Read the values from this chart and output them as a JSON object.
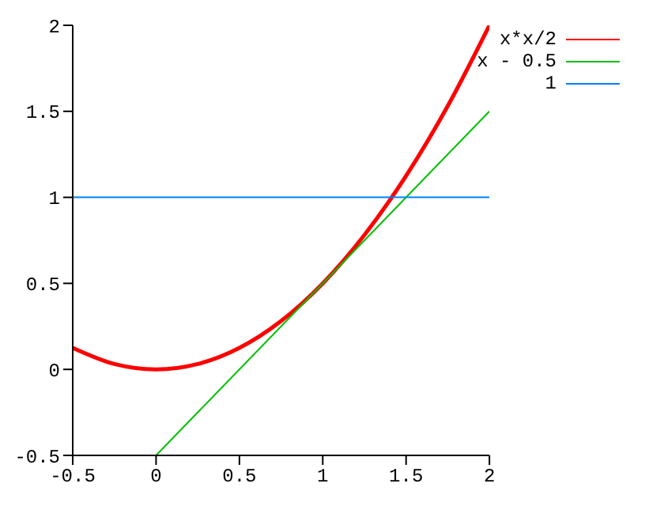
{
  "chart_data": {
    "type": "line",
    "xlim": [
      -0.5,
      2
    ],
    "xticks": [
      -0.5,
      0,
      0.5,
      1,
      1.5,
      2
    ],
    "ylim": [
      -0.5,
      2
    ],
    "yticks": [
      -0.5,
      0,
      0.5,
      1,
      1.5,
      2
    ],
    "grid": false,
    "legend": "top right",
    "marker": "none",
    "line_style": "solid",
    "series": [
      {
        "name": "x*x/2",
        "color": "#ff0000",
        "x": [
          -0.5,
          -0.25,
          0,
          0.25,
          0.5,
          0.75,
          1,
          1.25,
          1.5,
          1.75,
          2
        ],
        "values": [
          0.125,
          0.03125,
          0,
          0.03125,
          0.125,
          0.28125,
          0.5,
          0.78125,
          1.125,
          1.53125,
          2
        ]
      },
      {
        "name": "x - 0.5",
        "color": "#00c000",
        "x": [
          0,
          2
        ],
        "values": [
          -0.5,
          1.5
        ]
      },
      {
        "name": "1",
        "color": "#0080ff",
        "x": [
          -0.5,
          2
        ],
        "values": [
          1,
          1
        ]
      }
    ]
  }
}
